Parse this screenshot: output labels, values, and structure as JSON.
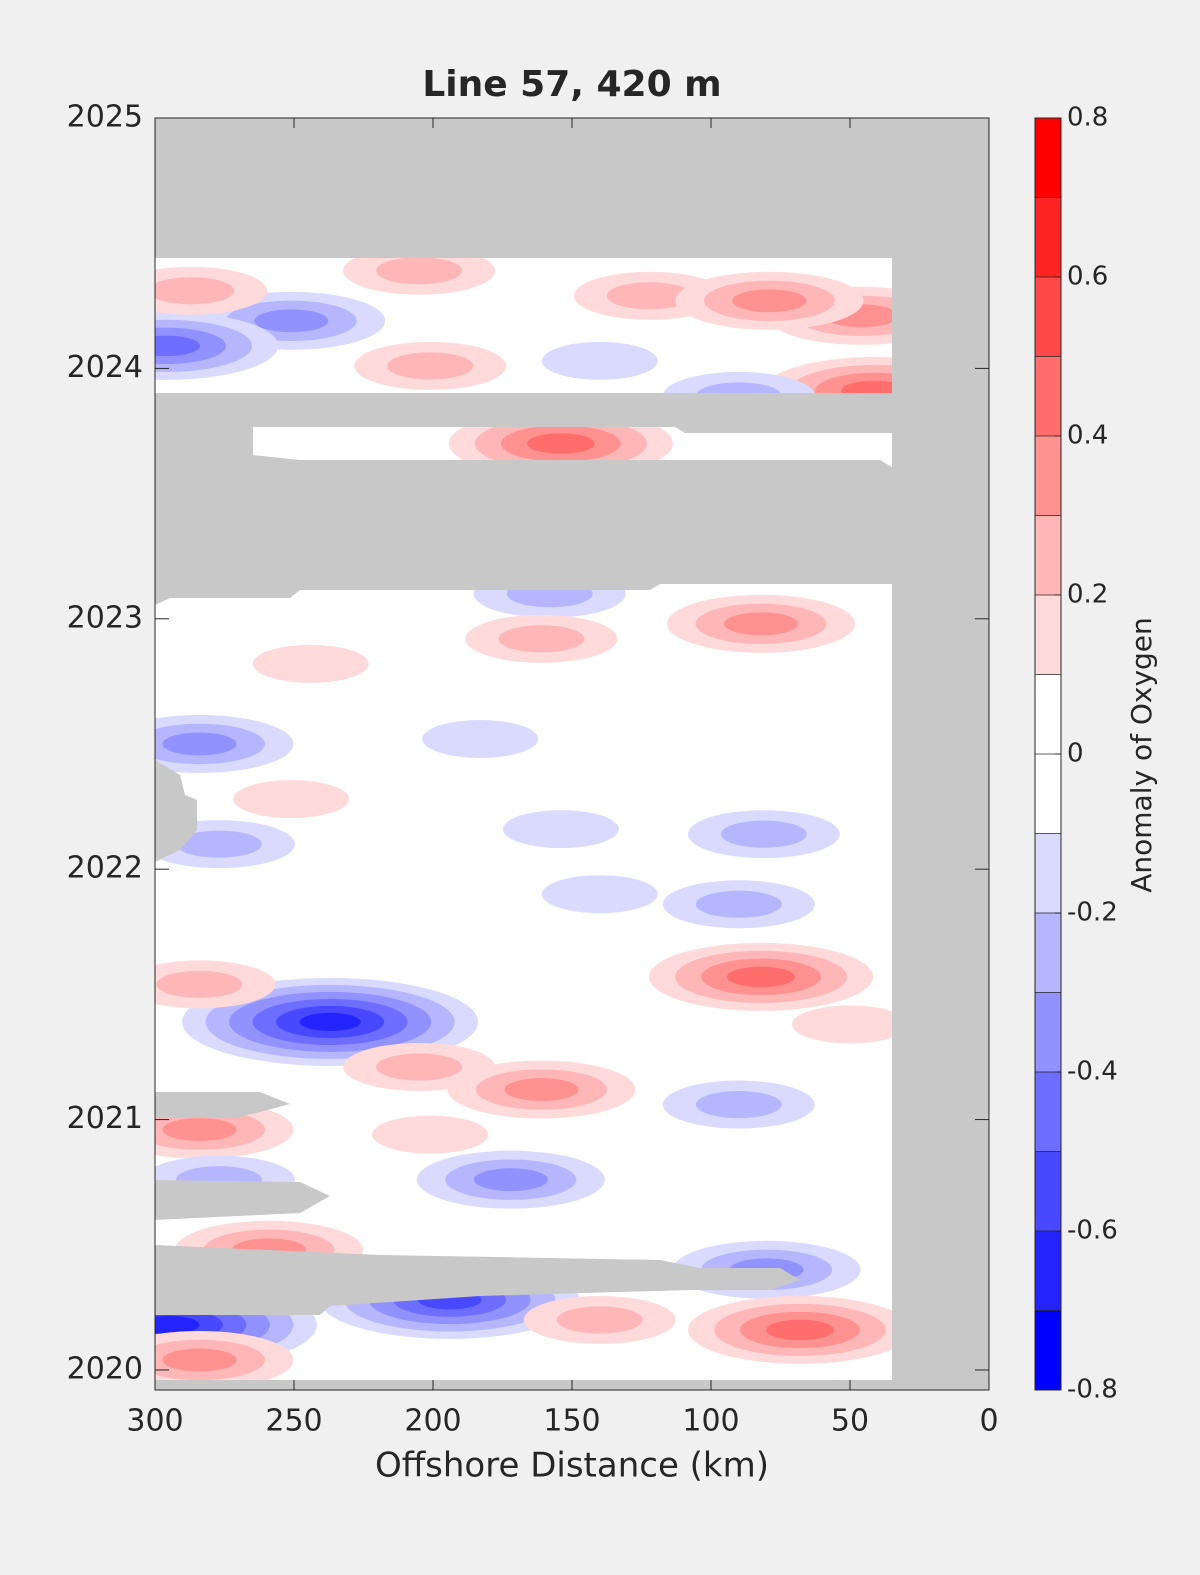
{
  "chart_data": {
    "type": "contour",
    "title": "Line 57, 420 m",
    "xlabel": "Offshore Distance (km)",
    "xlim": [
      300,
      0
    ],
    "xticks": [
      300,
      250,
      200,
      150,
      100,
      50,
      0
    ],
    "ylim": [
      2019.92,
      2025
    ],
    "yticks": [
      2020,
      2021,
      2022,
      2023,
      2024,
      2025
    ],
    "x": [
      237,
      251,
      296,
      154,
      41,
      46,
      122,
      205,
      79,
      287,
      201,
      90,
      140,
      158,
      82,
      161,
      244,
      284,
      183,
      251,
      277,
      154,
      81,
      90,
      140,
      82,
      284,
      161,
      205,
      90,
      284,
      172,
      277,
      194,
      80,
      68,
      140,
      295,
      284,
      201,
      50,
      259
    ],
    "y": [
      2021.39,
      2024.19,
      2024.09,
      2023.7,
      2023.91,
      2024.21,
      2024.29,
      2024.39,
      2024.27,
      2024.31,
      2024.01,
      2023.89,
      2024.03,
      2023.1,
      2022.98,
      2022.92,
      2022.82,
      2022.5,
      2022.52,
      2022.28,
      2022.1,
      2022.16,
      2022.14,
      2021.86,
      2021.9,
      2021.57,
      2021.54,
      2021.12,
      2021.21,
      2021.06,
      2020.96,
      2020.76,
      2020.76,
      2020.28,
      2020.4,
      2020.16,
      2020.2,
      2020.18,
      2020.04,
      2020.94,
      2021.38,
      2020.48
    ],
    "values": [
      -0.7,
      -0.35,
      -0.45,
      0.45,
      0.45,
      0.35,
      0.25,
      0.25,
      0.3,
      0.2,
      0.2,
      -0.3,
      -0.15,
      -0.3,
      0.3,
      0.25,
      0.15,
      -0.4,
      -0.15,
      0.15,
      -0.3,
      -0.15,
      -0.25,
      -0.3,
      -0.15,
      0.4,
      0.25,
      0.35,
      0.2,
      -0.25,
      0.35,
      -0.35,
      -0.3,
      -0.6,
      -0.35,
      0.4,
      0.25,
      -0.7,
      0.3,
      0.15,
      0.15,
      0.3
    ],
    "colorbar": {
      "label": "Anomaly of Oxygen",
      "lim": [
        -0.8,
        0.8
      ],
      "ticks": [
        -0.8,
        -0.6,
        -0.4,
        -0.2,
        0,
        0.2,
        0.4,
        0.6,
        0.8
      ],
      "levels": [
        -0.8,
        -0.7,
        -0.6,
        -0.5,
        -0.4,
        -0.3,
        -0.2,
        -0.1,
        0,
        0.1,
        0.2,
        0.3,
        0.4,
        0.5,
        0.6,
        0.7,
        0.8
      ],
      "colors": [
        "#0000ff",
        "#2424ff",
        "#4848ff",
        "#6d6dff",
        "#9191ff",
        "#b6b6ff",
        "#dadaff",
        "#ffffff",
        "#ffffff",
        "#ffdada",
        "#ffb6b6",
        "#ff9191",
        "#ff6d6d",
        "#ff4848",
        "#ff2424",
        "#ff0000"
      ]
    }
  }
}
